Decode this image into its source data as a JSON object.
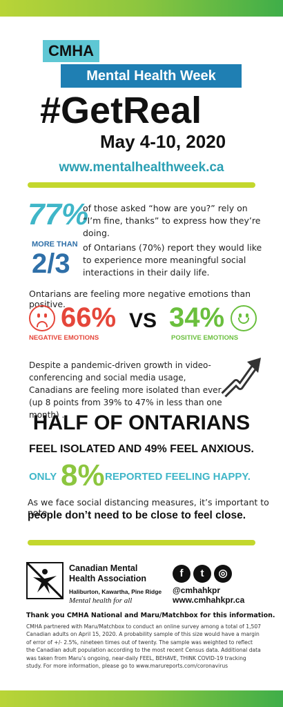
{
  "header": {
    "org_tag": "CMHA",
    "event_tag": "Mental Health Week",
    "hashtag": "#GetReal",
    "dates": "May 4-10, 2020",
    "url": "www.mentalhealthweek.ca"
  },
  "stats": {
    "s1": {
      "value": "77%",
      "text": "of those asked “how are you?” rely on “I’m fine, thanks” to express how they’re doing."
    },
    "s2": {
      "prefix": "MORE THAN",
      "value": "2/3",
      "text": "of Ontarians (70%) report they would like to experience more meaningful social interactions in their daily life."
    },
    "emotions": {
      "intro": "Ontarians are feeling more negative emotions than positive.",
      "negative_value": "66%",
      "negative_label": "NEGATIVE EMOTIONS",
      "vs": "VS",
      "positive_value": "34%",
      "positive_label": "POSITIVE EMOTIONS"
    },
    "isolation": "Despite a pandemic-driven growth in video-conferencing and social media usage, Canadians are feeling more isolated than ever (up 8 points from 39% to 47% in less than one month) .",
    "half_line1": "HALF OF ONTARIANS",
    "half_line2": "FEEL ISOLATED AND 49% FEEL ANXIOUS.",
    "happy_prefix": "ONLY",
    "happy_value": "8%",
    "happy_text": "REPORTED FEELING HAPPY.",
    "distancing_line1": "As we face social distancing measures, it’s important to note",
    "distancing_line2": "people don’t need to be close to feel close."
  },
  "footer": {
    "org_name_line1": "Canadian Mental",
    "org_name_line2": "Health Association",
    "branch": "Haliburton, Kawartha, Pine Ridge",
    "tagline": "Mental health for all",
    "social": {
      "facebook": "f",
      "twitter": "t",
      "instagram": "◎"
    },
    "handle": "@cmhahkpr",
    "website": "www.cmhahkpr.ca",
    "thanks": "Thank you CMHA National and Maru/Matchbox for this information.",
    "fineprint": "CMHA partnered with Maru/Matchbox to conduct an online survey among a total of 1,507 Canadian adults on April 15, 2020. A probability sample of this size would have a margin of error of +/- 2.5%, nineteen times out of twenty. The sample was weighted to reflect the Canadian adult population according to the most recent Census data. Additional data was taken from Maru’s ongoing, near-daily FEEL, BEHAVE, THINK COVID-19 tracking study. For more information, please go to www.marureports.com/coronavirus"
  },
  "colors": {
    "accent_teal": "#3fb6c8",
    "accent_blue": "#1f7fb3",
    "negative": "#e5463a",
    "positive": "#6abf3d",
    "lime": "#c3d72d"
  },
  "icons": [
    "sad-face-icon",
    "happy-face-icon",
    "trend-arrow-icon",
    "cmha-logo-icon",
    "facebook-icon",
    "twitter-icon",
    "instagram-icon"
  ]
}
